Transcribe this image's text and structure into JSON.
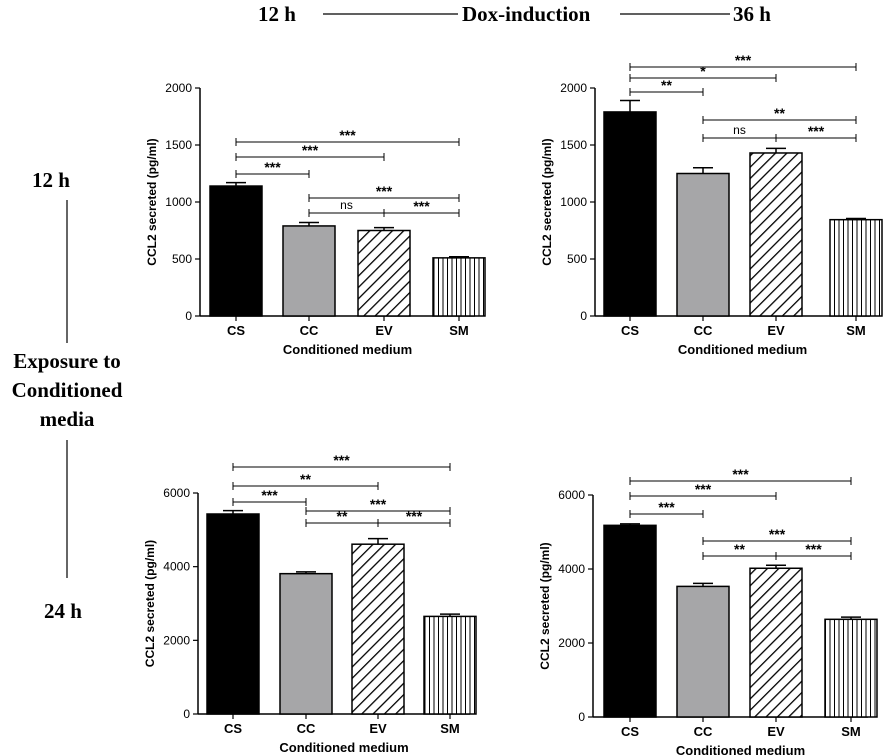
{
  "header": {
    "start_label": "12 h",
    "middle_label": "Dox-induction",
    "end_label": "36 h"
  },
  "side": {
    "top_label": "12 h",
    "exposure_lines": [
      "Exposure to",
      "Conditioned",
      "media"
    ],
    "bottom_label": "24 h"
  },
  "colors": {
    "cs": "#000000",
    "cc": "#a6a6a8",
    "stroke": "#000000"
  },
  "chart_data": [
    {
      "type": "bar",
      "panel": "top-left",
      "categories": [
        "CS",
        "CC",
        "EV",
        "SM"
      ],
      "values": [
        1140,
        790,
        750,
        510
      ],
      "errors": [
        30,
        30,
        25,
        10
      ],
      "fills": [
        "solid-black",
        "solid-gray",
        "diagonal-hatch",
        "vertical-hatch"
      ],
      "ylim": [
        0,
        2000
      ],
      "yticks": [
        0,
        500,
        1000,
        1500,
        2000
      ],
      "xlabel": "Conditioned medium",
      "ylabel": "CCL2 secreted (pg/ml)",
      "significance": [
        {
          "from": 0,
          "to": 1,
          "label": "***"
        },
        {
          "from": 0,
          "to": 2,
          "label": "***"
        },
        {
          "from": 0,
          "to": 3,
          "label": "***"
        },
        {
          "from": 1,
          "to": 2,
          "label": "ns"
        },
        {
          "from": 2,
          "to": 3,
          "label": "***"
        },
        {
          "from": 1,
          "to": 3,
          "label": "***"
        }
      ]
    },
    {
      "type": "bar",
      "panel": "top-right",
      "categories": [
        "CS",
        "CC",
        "EV",
        "SM"
      ],
      "values": [
        1790,
        1250,
        1430,
        845
      ],
      "errors": [
        100,
        50,
        40,
        10
      ],
      "fills": [
        "solid-black",
        "solid-gray",
        "diagonal-hatch",
        "vertical-hatch"
      ],
      "ylim": [
        0,
        2000
      ],
      "yticks": [
        0,
        500,
        1000,
        1500,
        2000
      ],
      "xlabel": "Conditioned medium",
      "ylabel": "CCL2 secreted (pg/ml)",
      "significance": [
        {
          "from": 0,
          "to": 1,
          "label": "**"
        },
        {
          "from": 0,
          "to": 2,
          "label": "*"
        },
        {
          "from": 0,
          "to": 3,
          "label": "***"
        },
        {
          "from": 1,
          "to": 2,
          "label": "ns"
        },
        {
          "from": 2,
          "to": 3,
          "label": "***"
        },
        {
          "from": 1,
          "to": 3,
          "label": "**"
        }
      ]
    },
    {
      "type": "bar",
      "panel": "bottom-left",
      "categories": [
        "CS",
        "CC",
        "EV",
        "SM"
      ],
      "values": [
        5430,
        3810,
        4610,
        2650
      ],
      "errors": [
        90,
        50,
        150,
        60
      ],
      "fills": [
        "solid-black",
        "solid-gray",
        "diagonal-hatch",
        "vertical-hatch"
      ],
      "ylim": [
        0,
        6000
      ],
      "yticks": [
        0,
        2000,
        4000,
        6000
      ],
      "xlabel": "Conditioned medium",
      "ylabel": "CCL2 secreted (pg/ml)",
      "significance": [
        {
          "from": 0,
          "to": 1,
          "label": "***"
        },
        {
          "from": 0,
          "to": 2,
          "label": "**"
        },
        {
          "from": 0,
          "to": 3,
          "label": "***"
        },
        {
          "from": 1,
          "to": 2,
          "label": "**"
        },
        {
          "from": 2,
          "to": 3,
          "label": "***"
        },
        {
          "from": 1,
          "to": 3,
          "label": "***"
        }
      ]
    },
    {
      "type": "bar",
      "panel": "bottom-right",
      "categories": [
        "CS",
        "CC",
        "EV",
        "SM"
      ],
      "values": [
        5180,
        3530,
        4020,
        2640
      ],
      "errors": [
        40,
        80,
        80,
        60
      ],
      "fills": [
        "solid-black",
        "solid-gray",
        "diagonal-hatch",
        "vertical-hatch"
      ],
      "ylim": [
        0,
        6000
      ],
      "yticks": [
        0,
        2000,
        4000,
        6000
      ],
      "xlabel": "Conditioned medium",
      "ylabel": "CCL2 secreted (pg/ml)",
      "significance": [
        {
          "from": 0,
          "to": 1,
          "label": "***"
        },
        {
          "from": 0,
          "to": 2,
          "label": "***"
        },
        {
          "from": 0,
          "to": 3,
          "label": "***"
        },
        {
          "from": 1,
          "to": 2,
          "label": "**"
        },
        {
          "from": 2,
          "to": 3,
          "label": "***"
        },
        {
          "from": 1,
          "to": 3,
          "label": "***"
        }
      ]
    }
  ]
}
